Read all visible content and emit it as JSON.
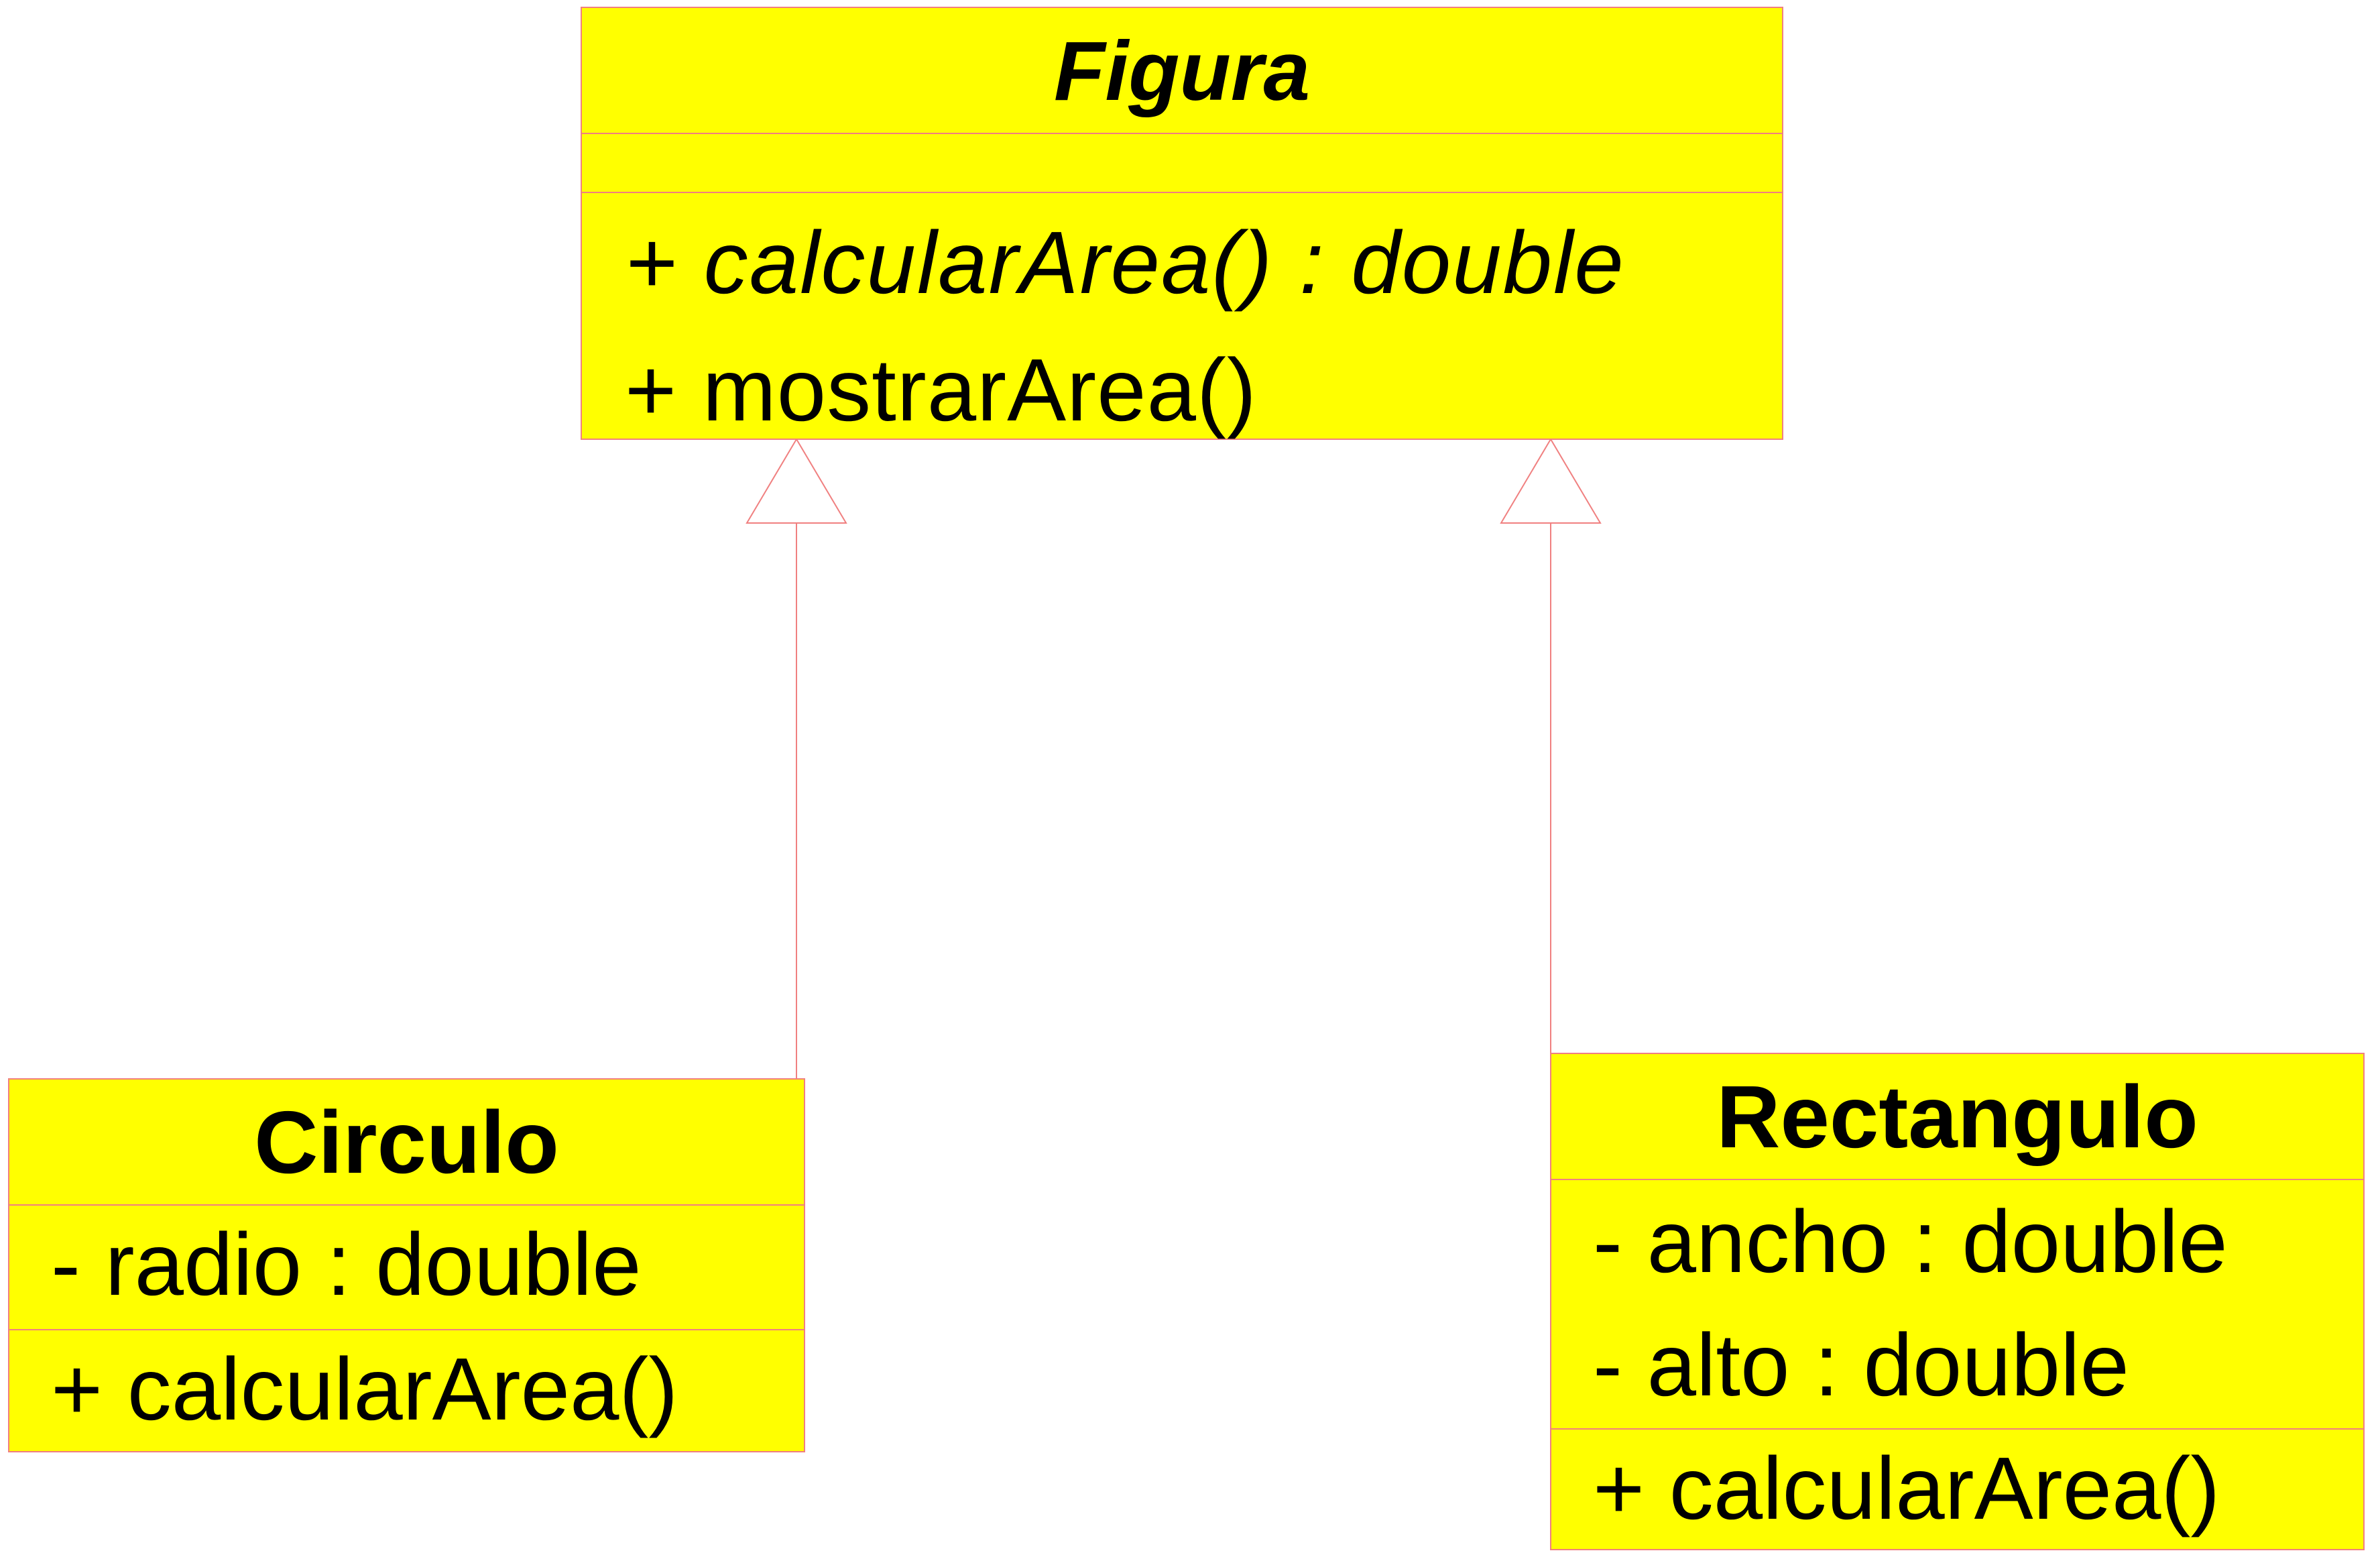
{
  "diagram": {
    "colors": {
      "class_fill": "#ffff00",
      "class_border": "#f08080",
      "connector": "#f08080"
    },
    "classes": {
      "figura": {
        "name": "Figura",
        "abstract": true,
        "attributes": [],
        "operations": [
          {
            "text": "+ calcularArea() : double",
            "abstract": true
          },
          {
            "text": "+ mostrarArea()",
            "abstract": false
          }
        ]
      },
      "circulo": {
        "name": "Circulo",
        "abstract": false,
        "attributes": [
          "- radio : double"
        ],
        "operations": [
          {
            "text": "+ calcularArea()",
            "abstract": false
          }
        ]
      },
      "rectangulo": {
        "name": "Rectangulo",
        "abstract": false,
        "attributes": [
          "- ancho : double",
          "- alto : double"
        ],
        "operations": [
          {
            "text": "+ calcularArea()",
            "abstract": false
          }
        ]
      }
    },
    "relationships": [
      {
        "type": "generalization",
        "from": "Circulo",
        "to": "Figura"
      },
      {
        "type": "generalization",
        "from": "Rectangulo",
        "to": "Figura"
      }
    ]
  }
}
